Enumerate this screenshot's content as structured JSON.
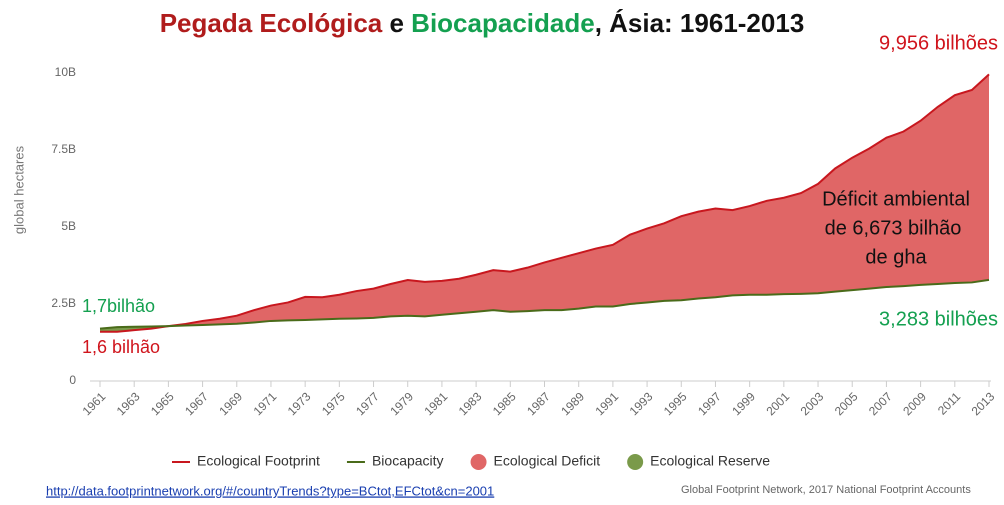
{
  "chart_data": {
    "type": "line",
    "title_parts": [
      {
        "text": "Pegada Ecológica",
        "color": "#b01c1c"
      },
      {
        "text": " e ",
        "color": "#111111"
      },
      {
        "text": "Biocapacidade",
        "color": "#14a050"
      },
      {
        "text": ", Ásia: 1961-2013",
        "color": "#111111"
      }
    ],
    "y_label": "global hectares",
    "x": [
      1961,
      1962,
      1963,
      1964,
      1965,
      1966,
      1967,
      1968,
      1969,
      1970,
      1971,
      1972,
      1973,
      1974,
      1975,
      1976,
      1977,
      1978,
      1979,
      1980,
      1981,
      1982,
      1983,
      1984,
      1985,
      1986,
      1987,
      1988,
      1989,
      1990,
      1991,
      1992,
      1993,
      1994,
      1995,
      1996,
      1997,
      1998,
      1999,
      2000,
      2001,
      2002,
      2003,
      2004,
      2005,
      2006,
      2007,
      2008,
      2009,
      2010,
      2011,
      2012,
      2013
    ],
    "xlim": [
      1961,
      2013
    ],
    "xticks": [
      1961,
      1963,
      1965,
      1967,
      1969,
      1971,
      1973,
      1975,
      1977,
      1979,
      1981,
      1983,
      1985,
      1987,
      1989,
      1991,
      1993,
      1995,
      1997,
      1999,
      2001,
      2003,
      2005,
      2007,
      2009,
      2011,
      2013
    ],
    "ylim": [
      0,
      10
    ],
    "yticks": [
      0,
      {
        "value": 2.5,
        "label": "2.5B"
      },
      {
        "value": 5,
        "label": "5B"
      },
      {
        "value": 7.5,
        "label": "7.5B"
      },
      {
        "value": 10,
        "label": "10B"
      }
    ],
    "grid": false,
    "series": [
      {
        "name": "Ecological Footprint",
        "color": "#c8171e",
        "values": [
          1.6,
          1.6,
          1.65,
          1.7,
          1.78,
          1.85,
          1.95,
          2.02,
          2.12,
          2.3,
          2.45,
          2.55,
          2.73,
          2.72,
          2.8,
          2.92,
          3.0,
          3.15,
          3.28,
          3.22,
          3.25,
          3.32,
          3.45,
          3.6,
          3.55,
          3.68,
          3.85,
          4.0,
          4.15,
          4.3,
          4.42,
          4.75,
          4.95,
          5.12,
          5.35,
          5.5,
          5.6,
          5.55,
          5.68,
          5.85,
          5.95,
          6.1,
          6.4,
          6.9,
          7.25,
          7.55,
          7.9,
          8.1,
          8.45,
          8.9,
          9.28,
          9.45,
          9.956
        ]
      },
      {
        "name": "Biocapacity",
        "color": "#4a6b1a",
        "values": [
          1.7,
          1.75,
          1.76,
          1.77,
          1.78,
          1.8,
          1.82,
          1.84,
          1.86,
          1.9,
          1.95,
          1.97,
          1.98,
          2.0,
          2.02,
          2.03,
          2.05,
          2.1,
          2.12,
          2.1,
          2.15,
          2.2,
          2.25,
          2.3,
          2.25,
          2.27,
          2.3,
          2.3,
          2.35,
          2.42,
          2.42,
          2.5,
          2.55,
          2.6,
          2.62,
          2.68,
          2.72,
          2.78,
          2.8,
          2.8,
          2.82,
          2.83,
          2.85,
          2.9,
          2.95,
          3.0,
          3.05,
          3.08,
          3.12,
          3.15,
          3.18,
          3.2,
          3.283
        ]
      }
    ],
    "areas": [
      {
        "name": "Ecological Deficit",
        "color": "#e06666"
      },
      {
        "name": "Ecological Reserve",
        "color": "#7a9a4a"
      }
    ],
    "annotations": [
      {
        "text": "9,956 bilhões",
        "color": "#d0141c"
      },
      {
        "text": "Déficit  ambiental",
        "color": "#111111"
      },
      {
        "text": "de 6,673 bilhão",
        "color": "#111111"
      },
      {
        "text": "de gha",
        "color": "#111111"
      },
      {
        "text": "1,7bilhão",
        "color": "#14a050"
      },
      {
        "text": "1,6 bilhão",
        "color": "#d0141c"
      },
      {
        "text": "3,283 bilhões",
        "color": "#14a050"
      }
    ],
    "link": "http://data.footprintnetwork.org/#/countryTrends?type=BCtot,EFCtot&cn=2001",
    "source": "Global Footprint Network, 2017 National Footprint Accounts"
  }
}
